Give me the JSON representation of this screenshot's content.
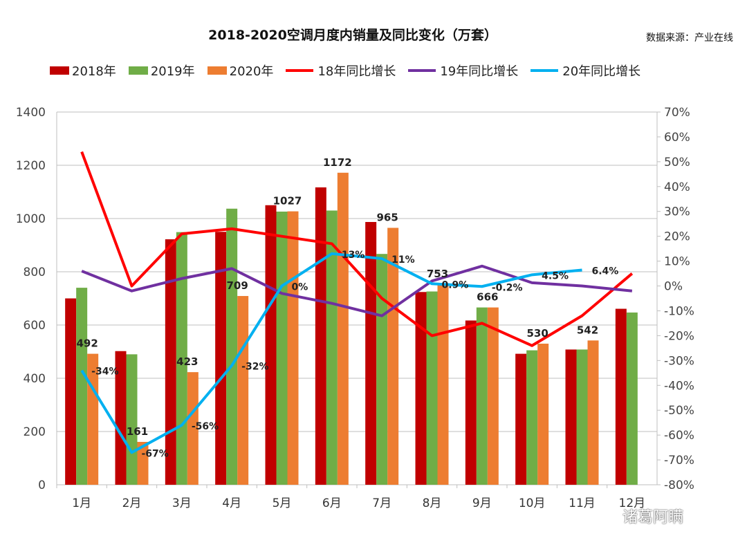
{
  "chart_data": {
    "type": "bar",
    "title": "2018-2020空调月度内销量及同比变化（万套）",
    "source": "数据来源：产业在线",
    "watermark": "诸葛阿瞒",
    "categories": [
      "1月",
      "2月",
      "3月",
      "4月",
      "5月",
      "6月",
      "7月",
      "8月",
      "9月",
      "10月",
      "11月",
      "12月"
    ],
    "ylim": [
      0,
      1400
    ],
    "yticks": [
      "0",
      "200",
      "400",
      "600",
      "800",
      "1000",
      "1200",
      "1400"
    ],
    "y2lim": [
      -80,
      70
    ],
    "y2ticks": [
      "-80%",
      "-70%",
      "-60%",
      "-50%",
      "-40%",
      "-30%",
      "-20%",
      "-10%",
      "0%",
      "10%",
      "20%",
      "30%",
      "40%",
      "50%",
      "60%",
      "70%"
    ],
    "grid": true,
    "legend_position": "top",
    "bar_series": [
      {
        "name": "2018年",
        "color": "#C00000",
        "values": [
          700,
          502,
          922,
          950,
          1050,
          1117,
          987,
          724,
          617,
          492,
          508,
          661
        ]
      },
      {
        "name": "2019年",
        "color": "#70AD47",
        "values": [
          740,
          490,
          949,
          1037,
          1026,
          1030,
          867,
          726,
          666,
          505,
          508,
          647
        ]
      },
      {
        "name": "2020年",
        "color": "#ED7D31",
        "values": [
          492,
          161,
          423,
          709,
          1027,
          1172,
          965,
          753,
          666,
          530,
          542,
          null
        ],
        "labels": [
          "492",
          "161",
          "423",
          "709",
          "1027",
          "1172",
          "965",
          "753",
          "666",
          "530",
          "542",
          ""
        ]
      }
    ],
    "line_series": [
      {
        "name": "18年同比增长",
        "color": "#FF0000",
        "axis": "right",
        "values": [
          54,
          0,
          21,
          23,
          20,
          17,
          -5,
          -20,
          -15,
          -24,
          -12,
          5
        ]
      },
      {
        "name": "19年同比增长",
        "color": "#7030A0",
        "axis": "right",
        "values": [
          6,
          -2,
          3,
          7,
          -3,
          -7,
          -12,
          2,
          8,
          1.3,
          0,
          -2
        ]
      },
      {
        "name": "20年同比增长",
        "color": "#00B0F0",
        "axis": "right",
        "values": [
          -34,
          -67,
          -56,
          -32,
          0,
          13,
          11,
          0.9,
          -0.2,
          4.5,
          6.4,
          null
        ],
        "labels": [
          "-34%",
          "-67%",
          "-56%",
          "-32%",
          "0%",
          "13%",
          "11%",
          "0.9%",
          "-0.2%",
          "4.5%",
          "6.4%",
          ""
        ]
      }
    ]
  }
}
